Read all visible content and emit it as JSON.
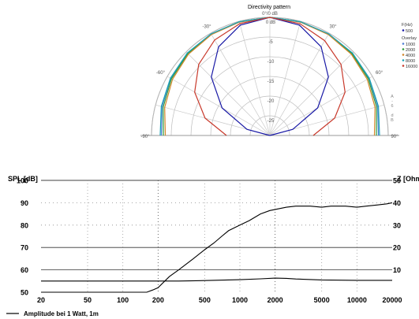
{
  "chart_data": [
    {
      "type": "polar",
      "title": "Directivity pattern",
      "angle_labels": [
        "0°/0 dB",
        "-30°",
        "30°",
        "-60°",
        "60°",
        "-90°",
        "90°"
      ],
      "radial_ticks": [
        0,
        -5,
        -10,
        -15,
        -20,
        -25
      ],
      "radial_tick_labels": [
        "0 dB",
        "-5",
        "-10",
        "-15",
        "-20",
        "-25"
      ],
      "rlim": [
        -30,
        0
      ],
      "legend_title": "F(Hz)",
      "legend_overlay_label": "Overlay",
      "legend_side_text": "A-6 dB",
      "series": [
        {
          "name": "500",
          "color": "#1a1aa6",
          "angles": [
            -90,
            -75,
            -60,
            -45,
            -30,
            -15,
            0,
            15,
            30,
            45,
            60,
            75,
            90
          ],
          "db": [
            -30,
            -24,
            -16,
            -9,
            -4,
            -1,
            0,
            -1,
            -4,
            -9,
            -16,
            -24,
            -30
          ]
        },
        {
          "name": "1000",
          "color": "#4f7fd6",
          "angles": [
            -90,
            -75,
            -60,
            -45,
            -30,
            -15,
            0,
            15,
            30,
            45,
            60,
            75,
            90
          ],
          "db": [
            -2.5,
            -1.7,
            -1.0,
            -0.5,
            -0.2,
            -0.1,
            0,
            -0.1,
            -0.2,
            -0.5,
            -1.0,
            -1.7,
            -2.5
          ]
        },
        {
          "name": "2000",
          "color": "#2e9b3c",
          "angles": [
            -90,
            -75,
            -60,
            -45,
            -30,
            -15,
            0,
            15,
            30,
            45,
            60,
            75,
            90
          ],
          "db": [
            -3.0,
            -2.0,
            -1.2,
            -0.6,
            -0.3,
            -0.1,
            0,
            -0.1,
            -0.3,
            -0.6,
            -1.2,
            -2.0,
            -3.0
          ]
        },
        {
          "name": "4000",
          "color": "#d2862a",
          "angles": [
            -90,
            -75,
            -60,
            -45,
            -30,
            -15,
            0,
            15,
            30,
            45,
            60,
            75,
            90
          ],
          "db": [
            -3.5,
            -2.4,
            -1.5,
            -0.8,
            -0.4,
            -0.2,
            0,
            -0.2,
            -0.4,
            -0.8,
            -1.5,
            -2.4,
            -3.5
          ]
        },
        {
          "name": "8000",
          "color": "#19a3b5",
          "angles": [
            -90,
            -75,
            -60,
            -45,
            -30,
            -15,
            0,
            15,
            30,
            45,
            60,
            75,
            90
          ],
          "db": [
            -2.2,
            -1.5,
            -0.9,
            -0.4,
            -0.2,
            -0.1,
            0,
            -0.1,
            -0.2,
            -0.4,
            -0.9,
            -1.5,
            -2.2
          ]
        },
        {
          "name": "16000",
          "color": "#c8392b",
          "angles": [
            -90,
            -75,
            -60,
            -45,
            -30,
            -15,
            0,
            15,
            30,
            45,
            60,
            75,
            90
          ],
          "db": [
            -19,
            -13,
            -8,
            -4.5,
            -2,
            -0.6,
            0,
            -0.6,
            -2.2,
            -4.5,
            -8,
            -13,
            -19
          ]
        }
      ]
    },
    {
      "type": "line",
      "ylabel": "SPL [dB]",
      "y2label": "Z [Ohm",
      "xscale": "log",
      "xlim": [
        20,
        20000
      ],
      "ylim": [
        50,
        100
      ],
      "y2lim": [
        0,
        50
      ],
      "x_ticks": [
        20,
        50,
        100,
        200,
        500,
        1000,
        2000,
        5000,
        10000,
        20000
      ],
      "x_tick_labels": [
        "20",
        "50",
        "100",
        "200",
        "500",
        "1000",
        "2000",
        "5000",
        "10000",
        "20000"
      ],
      "y_ticks": [
        50,
        60,
        70,
        80,
        90,
        100
      ],
      "y_tick_labels": [
        "50",
        "60",
        "70",
        "80",
        "90",
        "100"
      ],
      "y2_ticks": [
        10,
        20,
        30,
        40,
        50
      ],
      "y2_tick_labels": [
        "10",
        "20",
        "30",
        "40",
        "50"
      ],
      "legend_position": "bottom-left",
      "series": [
        {
          "name": "Amplitude bei 1 Watt, 1m",
          "axis": "left",
          "x": [
            20,
            100,
            160,
            180,
            200,
            250,
            300,
            400,
            500,
            600,
            700,
            800,
            1000,
            1200,
            1500,
            1800,
            2000,
            2500,
            3000,
            4000,
            5000,
            6000,
            8000,
            10000,
            12000,
            15000,
            18000,
            20000
          ],
          "y": [
            50,
            50,
            50,
            51,
            52,
            57,
            60,
            65,
            69,
            72,
            75,
            77.5,
            80,
            82,
            85,
            86.5,
            87,
            88,
            88.5,
            88.5,
            88,
            88.5,
            88.5,
            88,
            88.5,
            89,
            89.5,
            90
          ]
        },
        {
          "name": "",
          "axis": "right",
          "x": [
            20,
            100,
            160,
            200,
            300,
            500,
            1000,
            1500,
            2000,
            2500,
            3000,
            5000,
            10000,
            20000
          ],
          "y": [
            5,
            5,
            5,
            5,
            5,
            5.2,
            5.6,
            6.0,
            6.3,
            6.2,
            5.9,
            5.5,
            5.3,
            5.3
          ]
        }
      ]
    }
  ]
}
